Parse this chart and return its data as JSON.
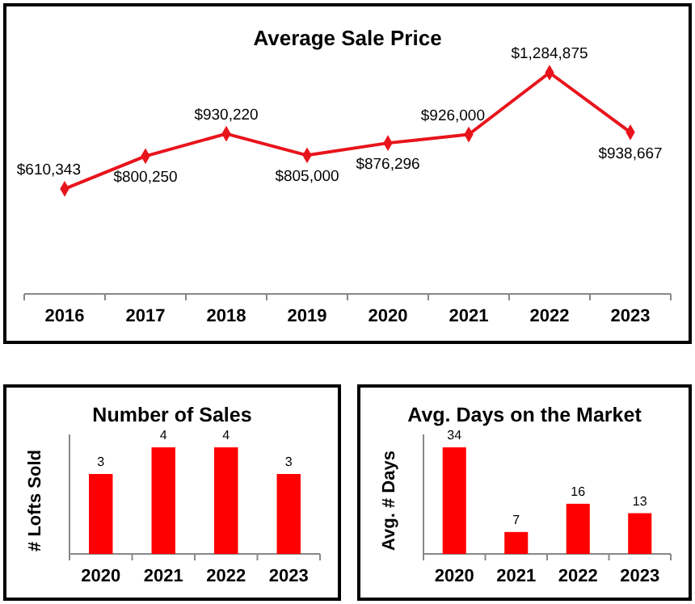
{
  "chart_data": [
    {
      "type": "line",
      "title": "Average Sale Price",
      "categories": [
        "2016",
        "2017",
        "2018",
        "2019",
        "2020",
        "2021",
        "2022",
        "2023"
      ],
      "series": [
        {
          "color": "#e8141c",
          "values": [
            610343,
            800250,
            930220,
            805000,
            876296,
            926000,
            1284875,
            938667
          ],
          "value_labels": [
            "$610,343",
            "$800,250",
            "$930,220",
            "$805,000",
            "$876,296",
            "$926,000",
            "$1,284,875",
            "$938,667"
          ]
        }
      ],
      "marker": "diamond"
    },
    {
      "type": "bar",
      "title": "Number of Sales",
      "ylabel": "# Lofts Sold",
      "categories": [
        "2020",
        "2021",
        "2022",
        "2023"
      ],
      "values": [
        3,
        4,
        4,
        3
      ],
      "color": "#ff0000",
      "data_labels": true
    },
    {
      "type": "bar",
      "title": "Avg. Days on the Market",
      "ylabel": "Avg. # Days",
      "categories": [
        "2020",
        "2021",
        "2022",
        "2023"
      ],
      "values": [
        34,
        7,
        16,
        13
      ],
      "color": "#ff0000",
      "data_labels": true
    }
  ]
}
